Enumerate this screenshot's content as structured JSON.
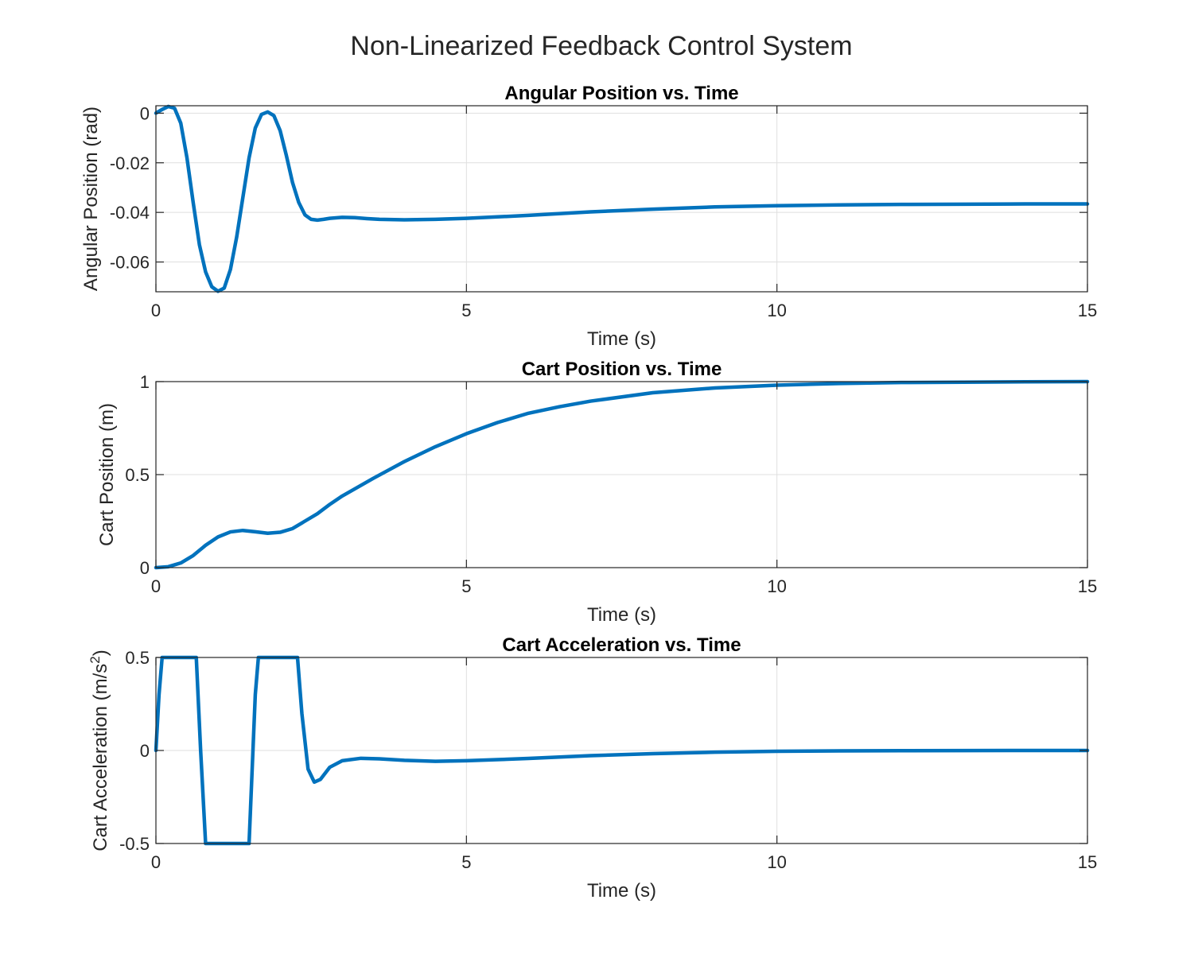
{
  "figure": {
    "title": "Non-Linearized Feedback Control System"
  },
  "colors": {
    "line": "#0072BD",
    "grid": "#dfdfdf",
    "axis": "#262626"
  },
  "chart_data": [
    {
      "type": "line",
      "title": "Angular Position vs. Time",
      "xlabel": "Time (s)",
      "ylabel": "Angular Position (rad)",
      "xlim": [
        0,
        15
      ],
      "ylim": [
        -0.072,
        0.003
      ],
      "xticks": [
        0,
        5,
        10,
        15
      ],
      "xtick_labels": [
        "0",
        "5",
        "10",
        "15"
      ],
      "yticks": [
        -0.06,
        -0.04,
        -0.02,
        0
      ],
      "ytick_labels": [
        "-0.06",
        "-0.04",
        "-0.02",
        "0"
      ],
      "grid": true,
      "series": [
        {
          "x": [
            0,
            0.1,
            0.2,
            0.3,
            0.4,
            0.5,
            0.6,
            0.7,
            0.8,
            0.9,
            1.0,
            1.1,
            1.2,
            1.3,
            1.4,
            1.5,
            1.6,
            1.7,
            1.8,
            1.9,
            2.0,
            2.1,
            2.2,
            2.3,
            2.4,
            2.5,
            2.6,
            2.7,
            2.8,
            3.0,
            3.2,
            3.4,
            3.6,
            4.0,
            4.5,
            5.0,
            5.5,
            6.0,
            7.0,
            8.0,
            9.0,
            10.0,
            11.0,
            12.0,
            13.0,
            14.0,
            15.0
          ],
          "y": [
            0,
            0.0015,
            0.0027,
            0.002,
            -0.004,
            -0.018,
            -0.036,
            -0.053,
            -0.064,
            -0.07,
            -0.0718,
            -0.0705,
            -0.063,
            -0.05,
            -0.034,
            -0.018,
            -0.006,
            -0.0005,
            0.0005,
            -0.001,
            -0.007,
            -0.017,
            -0.028,
            -0.036,
            -0.041,
            -0.0428,
            -0.0431,
            -0.0428,
            -0.0424,
            -0.042,
            -0.0421,
            -0.0425,
            -0.0428,
            -0.043,
            -0.0428,
            -0.0424,
            -0.0418,
            -0.0412,
            -0.0398,
            -0.0387,
            -0.0378,
            -0.0373,
            -0.037,
            -0.0368,
            -0.0367,
            -0.0366,
            -0.0366
          ]
        }
      ]
    },
    {
      "type": "line",
      "title": "Cart Position vs. Time",
      "xlabel": "Time (s)",
      "ylabel": "Cart Position (m)",
      "xlim": [
        0,
        15
      ],
      "ylim": [
        0,
        1
      ],
      "xticks": [
        0,
        5,
        10,
        15
      ],
      "xtick_labels": [
        "0",
        "5",
        "10",
        "15"
      ],
      "yticks": [
        0,
        0.5,
        1
      ],
      "ytick_labels": [
        "0",
        "0.5",
        "1"
      ],
      "grid": true,
      "series": [
        {
          "x": [
            0,
            0.2,
            0.4,
            0.6,
            0.8,
            1.0,
            1.2,
            1.4,
            1.6,
            1.8,
            2.0,
            2.2,
            2.4,
            2.6,
            2.8,
            3.0,
            3.5,
            4.0,
            4.5,
            5.0,
            5.5,
            6.0,
            6.5,
            7.0,
            8.0,
            9.0,
            10.0,
            11.0,
            12.0,
            13.0,
            14.0,
            15.0
          ],
          "y": [
            0,
            0.005,
            0.025,
            0.065,
            0.12,
            0.165,
            0.192,
            0.2,
            0.193,
            0.185,
            0.19,
            0.21,
            0.25,
            0.29,
            0.34,
            0.385,
            0.48,
            0.57,
            0.65,
            0.72,
            0.78,
            0.83,
            0.865,
            0.895,
            0.94,
            0.966,
            0.981,
            0.99,
            0.995,
            0.997,
            0.999,
            1.0
          ]
        }
      ]
    },
    {
      "type": "line",
      "title": "Cart Acceleration vs. Time",
      "xlabel": "Time (s)",
      "ylabel": "Cart Acceleration (m/s",
      "ylabel_superscript": "2",
      "ylabel_suffix": ")",
      "xlim": [
        0,
        15
      ],
      "ylim": [
        -0.5,
        0.5
      ],
      "xticks": [
        0,
        5,
        10,
        15
      ],
      "xtick_labels": [
        "0",
        "5",
        "10",
        "15"
      ],
      "yticks": [
        -0.5,
        0,
        0.5
      ],
      "ytick_labels": [
        "-0.5",
        "0",
        "0.5"
      ],
      "grid": true,
      "series": [
        {
          "x": [
            0,
            0.05,
            0.1,
            0.15,
            0.65,
            0.72,
            0.8,
            1.5,
            1.55,
            1.6,
            1.65,
            2.28,
            2.35,
            2.45,
            2.55,
            2.65,
            2.8,
            3.0,
            3.3,
            3.6,
            4.0,
            4.5,
            5.0,
            6.0,
            7.0,
            8.0,
            9.0,
            10.0,
            11.0,
            12.0,
            13.0,
            14.0,
            15.0
          ],
          "y": [
            0,
            0.3,
            0.5,
            0.5,
            0.5,
            0.0,
            -0.5,
            -0.5,
            -0.1,
            0.3,
            0.5,
            0.5,
            0.2,
            -0.1,
            -0.17,
            -0.155,
            -0.09,
            -0.055,
            -0.042,
            -0.045,
            -0.053,
            -0.058,
            -0.055,
            -0.043,
            -0.028,
            -0.017,
            -0.009,
            -0.004,
            -0.002,
            -0.001,
            -0.0005,
            0.0,
            0.0
          ]
        }
      ]
    }
  ]
}
